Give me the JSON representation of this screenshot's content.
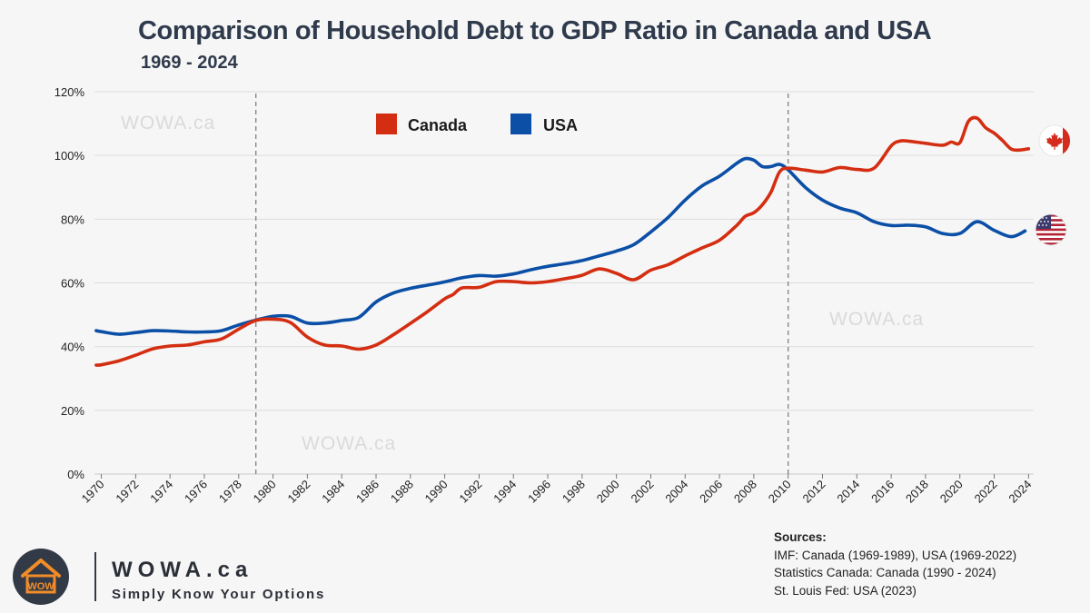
{
  "title": "Comparison of Household Debt to GDP Ratio in Canada and USA",
  "subtitle": "1969 - 2024",
  "watermark": "WOWA.ca",
  "colors": {
    "canada": "#d42e12",
    "usa": "#0b4fa6",
    "grid": "#dcdcdc",
    "marker": "#888888"
  },
  "chart_data": {
    "type": "line",
    "title": "Comparison of Household Debt to GDP Ratio in Canada and USA",
    "subtitle": "1969 - 2024",
    "xlabel": "",
    "ylabel": "",
    "xlim": [
      1969.6,
      2024.3
    ],
    "ylim": [
      0,
      120
    ],
    "yticks": [
      0,
      20,
      40,
      60,
      80,
      100,
      120
    ],
    "ytick_labels": [
      "0%",
      "20%",
      "40%",
      "60%",
      "80%",
      "100%",
      "120%"
    ],
    "xticks": [
      1970,
      1972,
      1974,
      1976,
      1978,
      1980,
      1982,
      1984,
      1986,
      1988,
      1990,
      1992,
      1994,
      1996,
      1998,
      2000,
      2002,
      2004,
      2006,
      2008,
      2010,
      2012,
      2014,
      2016,
      2018,
      2020,
      2022,
      2024
    ],
    "grid": true,
    "legend": {
      "position": "top-center",
      "entries": [
        "Canada",
        "USA"
      ]
    },
    "reference_lines_x": [
      1979,
      2010
    ],
    "series": [
      {
        "name": "Canada",
        "x": [
          1969.7,
          1970,
          1971,
          1972,
          1973,
          1974,
          1975,
          1976,
          1977,
          1978,
          1979,
          1980,
          1981,
          1982,
          1983,
          1984,
          1985,
          1986,
          1987,
          1988,
          1989,
          1990,
          1990.5,
          1991,
          1992,
          1993,
          1994,
          1995,
          1996,
          1997,
          1998,
          1999,
          2000,
          2001,
          2002,
          2003,
          2004,
          2005,
          2006,
          2007,
          2007.5,
          2008,
          2008.5,
          2009,
          2009.5,
          2010,
          2011,
          2012,
          2013,
          2014,
          2015,
          2016,
          2016.5,
          2017,
          2018,
          2019,
          2019.5,
          2020,
          2020.5,
          2021,
          2021.5,
          2022,
          2022.5,
          2023,
          2023.5,
          2024
        ],
        "values": [
          34.2,
          34.3,
          35.5,
          37.3,
          39.3,
          40.2,
          40.5,
          41.5,
          42.4,
          45.5,
          48.2,
          48.6,
          47.6,
          43,
          40.5,
          40.2,
          39.2,
          40.5,
          43.7,
          47.3,
          51,
          55,
          56.4,
          58.4,
          58.6,
          60.4,
          60.4,
          60,
          60.4,
          61.3,
          62.4,
          64.4,
          63,
          61,
          64,
          65.7,
          68.5,
          71,
          73.4,
          78,
          80.9,
          82,
          84.5,
          88.5,
          94.8,
          96,
          95.4,
          94.8,
          96.2,
          95.6,
          96,
          103,
          104.5,
          104.5,
          103.8,
          103.2,
          104.2,
          104,
          110.7,
          111.7,
          108.7,
          107,
          104.6,
          102,
          101.7,
          102.1
        ]
      },
      {
        "name": "USA",
        "x": [
          1969.7,
          1970,
          1971,
          1972,
          1973,
          1974,
          1975,
          1976,
          1977,
          1978,
          1979,
          1980,
          1981,
          1982,
          1983,
          1984,
          1985,
          1986,
          1987,
          1988,
          1989,
          1990,
          1991,
          1992,
          1993,
          1994,
          1995,
          1996,
          1997,
          1998,
          1999,
          2000,
          2001,
          2002,
          2003,
          2004,
          2005,
          2006,
          2007,
          2007.5,
          2008,
          2008.5,
          2009,
          2009.5,
          2010,
          2011,
          2012,
          2013,
          2014,
          2015,
          2016,
          2017,
          2018,
          2019,
          2020,
          2021,
          2022,
          2023,
          2023.8
        ],
        "values": [
          45,
          44.7,
          43.9,
          44.4,
          45,
          44.9,
          44.6,
          44.6,
          45,
          46.8,
          48.3,
          49.5,
          49.5,
          47.4,
          47.4,
          48.2,
          49.2,
          54,
          56.8,
          58.3,
          59.3,
          60.3,
          61.6,
          62.3,
          62.1,
          62.8,
          64.1,
          65.2,
          66,
          67,
          68.5,
          70,
          72,
          76,
          80.5,
          86,
          90.5,
          93.5,
          97.5,
          99,
          98.5,
          96.5,
          96.5,
          97.2,
          95.5,
          90,
          86,
          83.5,
          82,
          79.2,
          78,
          78.1,
          77.6,
          75.5,
          75.5,
          79.2,
          76.5,
          74.5,
          76.3
        ]
      }
    ]
  },
  "sources": {
    "heading": "Sources:",
    "lines": [
      "IMF: Canada (1969-1989), USA (1969-2022)",
      "Statistics Canada: Canada (1990 - 2024)",
      "St. Louis Fed: USA (2023)"
    ]
  },
  "brand": {
    "name": "WOWA.ca",
    "tagline": "Simply Know Your Options",
    "logo_text": "WOW"
  }
}
